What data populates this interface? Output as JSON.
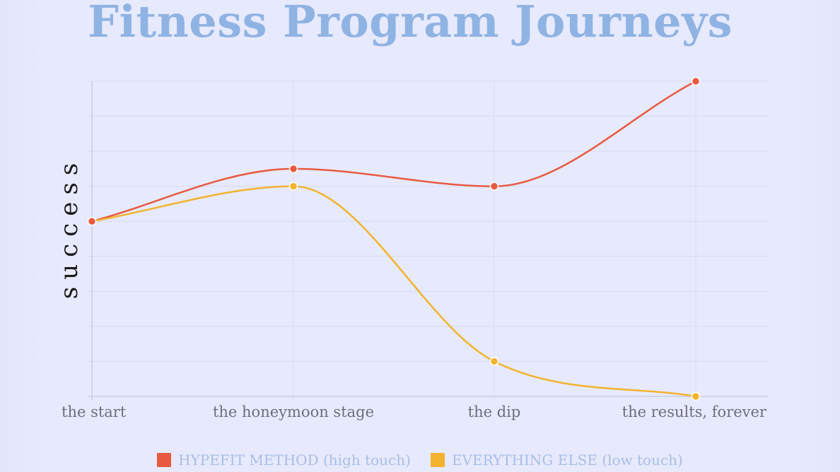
{
  "chart_data": {
    "type": "line",
    "title": "Fitness Program Journeys",
    "ylabel": "success",
    "xlabel": "",
    "categories": [
      "the start",
      "the honeymoon stage",
      "the dip",
      "the results, forever"
    ],
    "ylim": [
      0,
      9
    ],
    "grid": true,
    "legend_position": "bottom-center",
    "series": [
      {
        "name": "HYPEFIT METHOD (high touch)",
        "values": [
          5,
          6.5,
          6,
          9
        ],
        "color": "#e85a40"
      },
      {
        "name": "EVERYTHING ELSE (low touch)",
        "values": [
          5,
          6,
          1,
          0
        ],
        "color": "#f2b32e"
      }
    ]
  }
}
